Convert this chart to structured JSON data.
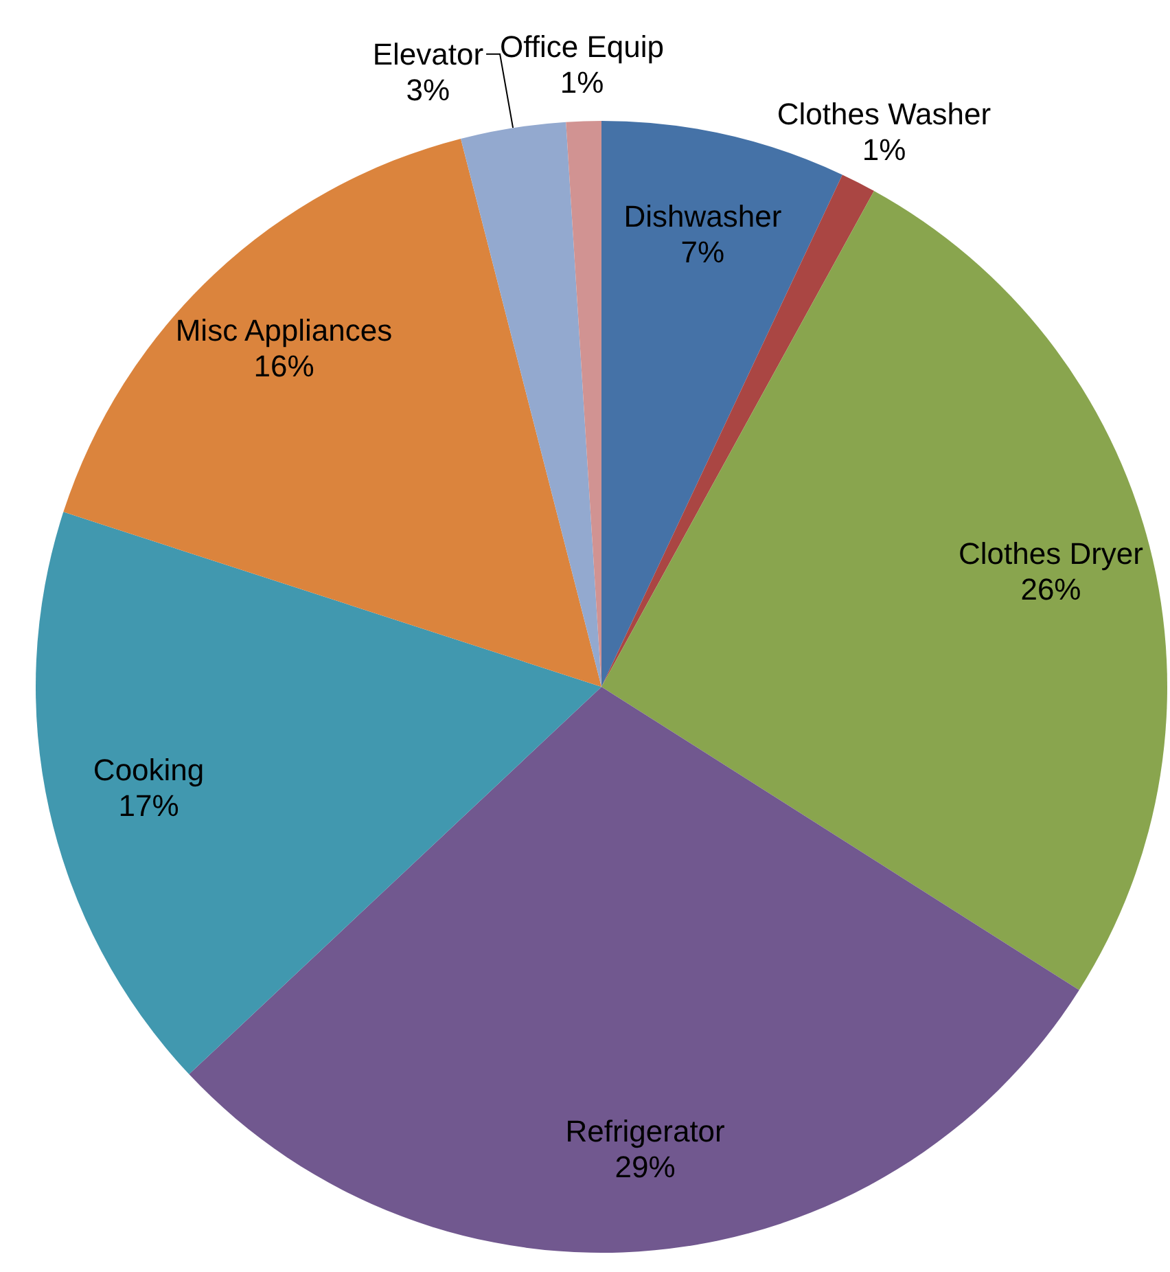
{
  "chart_data": {
    "type": "pie",
    "categories": [
      "Dishwasher",
      "Clothes Washer",
      "Clothes Dryer",
      "Refrigerator",
      "Cooking",
      "Misc Appliances",
      "Elevator",
      "Office Equip"
    ],
    "values": [
      7,
      1,
      26,
      29,
      17,
      16,
      3,
      1
    ],
    "colors": [
      "#4572a7",
      "#aa4643",
      "#89a54e",
      "#71588f",
      "#4198af",
      "#db843d",
      "#93a9cf",
      "#d19392"
    ],
    "value_labels": [
      "7%",
      "1%",
      "26%",
      "29%",
      "17%",
      "16%",
      "3%",
      "1%"
    ]
  }
}
